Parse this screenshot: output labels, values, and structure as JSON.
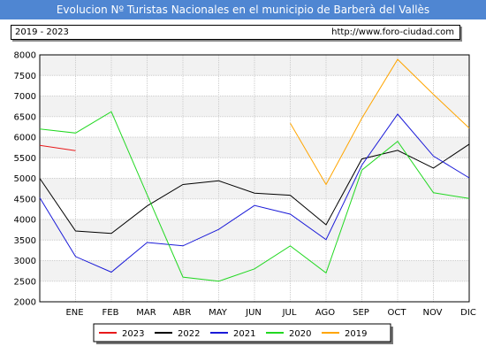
{
  "header": {
    "title": "Evolucion Nº Turistas Nacionales en el municipio de Barberà del Vallès",
    "period": "2019 - 2023",
    "url": "http://www.foro-ciudad.com"
  },
  "colors": {
    "title_bg": "#4f86d2",
    "band": "#f2f2f2",
    "grid": "#cccccc"
  },
  "chart_data": {
    "type": "line",
    "categories": [
      "ENE",
      "FEB",
      "MAR",
      "ABR",
      "MAY",
      "JUN",
      "JUL",
      "AGO",
      "SEP",
      "OCT",
      "NOV",
      "DIC"
    ],
    "ylim": [
      2000,
      8000
    ],
    "yticks": [
      2000,
      2500,
      3000,
      3500,
      4000,
      4500,
      5000,
      5500,
      6000,
      6500,
      7000,
      7500,
      8000
    ],
    "ytick_labels": [
      "2000",
      "2500",
      "3000",
      "3500",
      "4000",
      "4500",
      "5000",
      "5500",
      "6000",
      "6500",
      "7000",
      "7500",
      "8000"
    ],
    "x_start_value": {
      "2023": 5800,
      "2022": 5000,
      "2021": 4530,
      "2020": 6200
    },
    "series": [
      {
        "name": "2023",
        "color": "#e8191a",
        "values": [
          5670,
          null,
          null,
          null,
          null,
          null,
          null,
          null,
          null,
          null,
          null,
          null
        ]
      },
      {
        "name": "2022",
        "color": "#000000",
        "values": [
          3720,
          3660,
          4330,
          4850,
          4940,
          4640,
          4590,
          3870,
          5470,
          5680,
          5250,
          5830
        ]
      },
      {
        "name": "2021",
        "color": "#1a1ad8",
        "values": [
          3100,
          2720,
          3440,
          3360,
          3760,
          4340,
          4130,
          3510,
          5320,
          6560,
          5540,
          5010
        ]
      },
      {
        "name": "2020",
        "color": "#22d822",
        "values": [
          6100,
          6620,
          4600,
          2600,
          2500,
          2800,
          3360,
          2700,
          5200,
          5900,
          4650,
          4510
        ]
      },
      {
        "name": "2019",
        "color": "#ffa500",
        "values": [
          null,
          null,
          null,
          null,
          null,
          null,
          6340,
          4850,
          6460,
          7890,
          7040,
          6220
        ]
      }
    ],
    "grid": true,
    "legend": "bottom"
  }
}
